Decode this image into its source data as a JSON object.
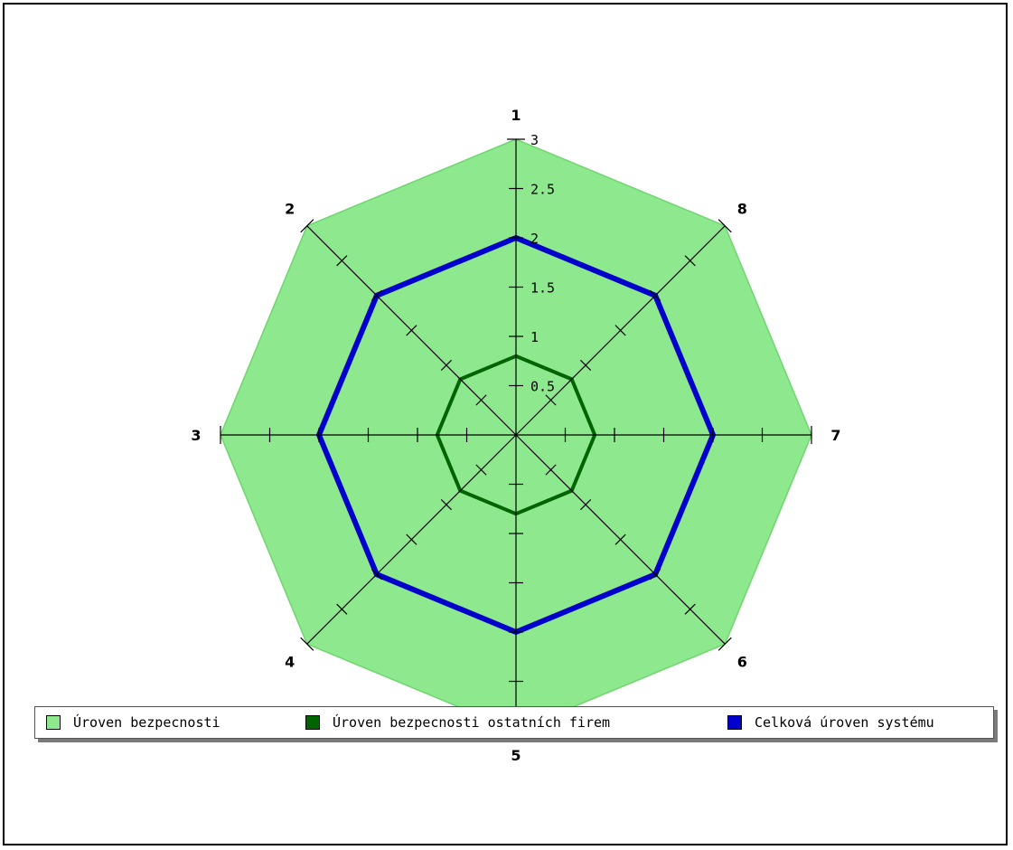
{
  "chart_data": {
    "type": "radar",
    "axes": [
      "1",
      "2",
      "3",
      "4",
      "5",
      "6",
      "7",
      "8"
    ],
    "rlim": [
      0,
      3
    ],
    "r_ticks": [
      0.5,
      1,
      1.5,
      2,
      2.5,
      3
    ],
    "r_tick_labels": [
      "0.5",
      "1",
      "1.5",
      "2",
      "2.5",
      "3"
    ],
    "series": [
      {
        "name": "Úroven bezpecnosti",
        "color": "#8ee88e",
        "fill": true,
        "values": [
          3,
          3,
          3,
          3,
          3,
          3,
          3,
          3
        ]
      },
      {
        "name": "Úroven bezpecnosti ostatních firem",
        "color": "#006400",
        "fill": false,
        "values": [
          0.8,
          0.8,
          0.8,
          0.8,
          0.8,
          0.8,
          0.8,
          0.8
        ]
      },
      {
        "name": "Celková úroven systému",
        "color": "#0000cc",
        "fill": false,
        "values": [
          2,
          2,
          2,
          2,
          2,
          2,
          2,
          2
        ]
      }
    ],
    "legend_position": "bottom"
  }
}
